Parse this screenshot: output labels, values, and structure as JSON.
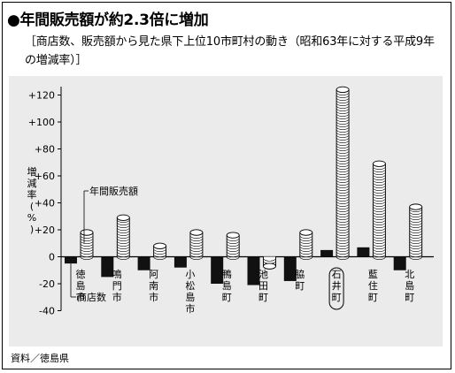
{
  "title": "●年間販売額が約2.3倍に増加",
  "subtitle": "［商店数、販売額から見た県下上位10市町村の動き（昭和63年に対する平成9年の増減率）］",
  "source": "資料／徳島県",
  "chart_data": {
    "type": "bar",
    "ylabel": "増減率（%）",
    "ylim": [
      -40,
      130
    ],
    "yticks": [
      "+120",
      "+100",
      "+80",
      "+60",
      "+40",
      "+20",
      "0",
      "-20",
      "-40"
    ],
    "grid": false,
    "categories": [
      "徳島市",
      "鳴門市",
      "阿南市",
      "小松島市",
      "鴨島町",
      "池田町",
      "脇町",
      "石井町",
      "藍住町",
      "北島町"
    ],
    "highlight_category": "石井町",
    "series": [
      {
        "name": "商店数",
        "style": "solid-black",
        "values": [
          -5,
          -15,
          -10,
          -8,
          -20,
          -21,
          -18,
          5,
          7,
          -10
        ]
      },
      {
        "name": "年間販売額",
        "style": "coin-stack",
        "values": [
          18,
          29,
          8,
          18,
          16,
          -7,
          18,
          124,
          69,
          37
        ]
      }
    ],
    "annotations": [
      {
        "text": "年間販売額",
        "points_to": "年間販売額"
      },
      {
        "text": "商店数",
        "points_to": "商店数"
      }
    ]
  }
}
